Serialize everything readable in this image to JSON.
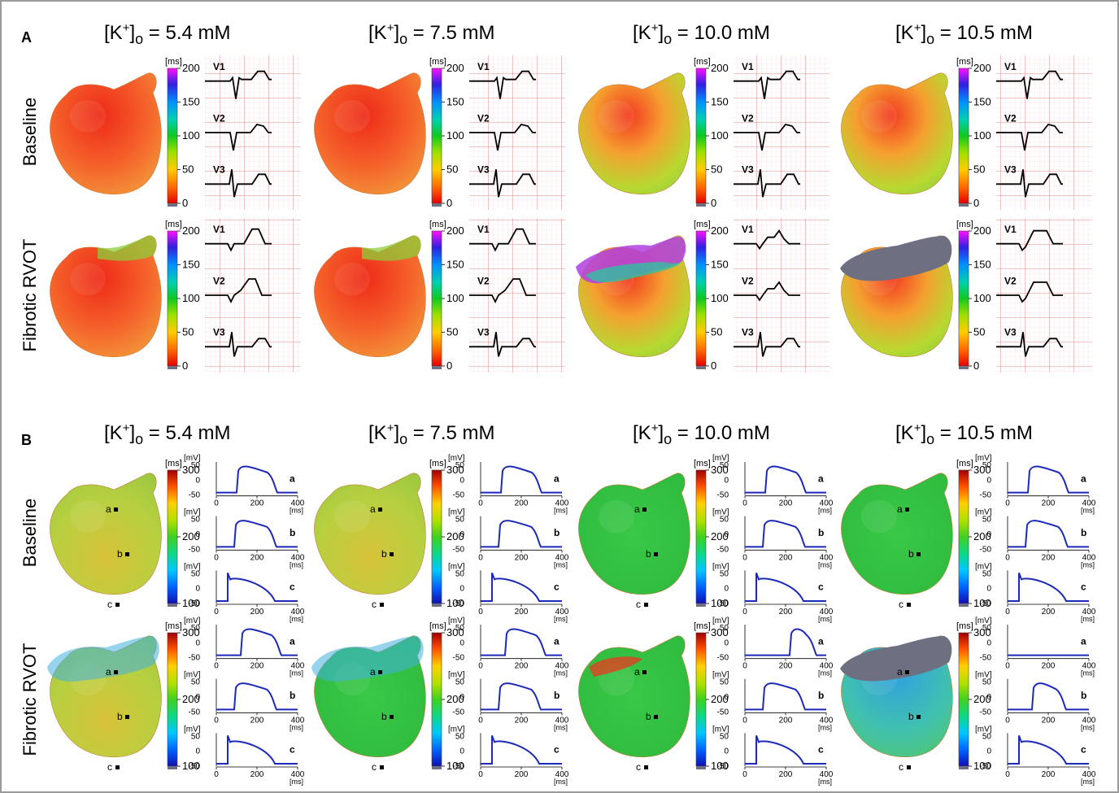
{
  "panels": {
    "A": {
      "letter": "A",
      "conditions": [
        "5.4 mM",
        "7.5 mM",
        "10.0 mM",
        "10.5 mM"
      ],
      "conc_values_mM": [
        5.4,
        7.5,
        10.0,
        10.5
      ],
      "rows": [
        "Baseline",
        "Fibrotic RVOT"
      ],
      "colorbar": {
        "unit": "[ms]",
        "ticks": [
          "0",
          "50",
          "100",
          "150",
          "200"
        ]
      },
      "ecg_leads": [
        "V1",
        "V2",
        "V3"
      ]
    },
    "B": {
      "letter": "B",
      "conditions": [
        "5.4 mM",
        "7.5 mM",
        "10.0 mM",
        "10.5 mM"
      ],
      "rows": [
        "Baseline",
        "Fibrotic RVOT"
      ],
      "colorbar": {
        "unit": "[ms]",
        "ticks": [
          "100",
          "200",
          "300"
        ]
      },
      "ap": {
        "y_unit": "[mV]",
        "y_ticks": [
          "50",
          "0",
          "-50"
        ],
        "x_ticks": [
          "0",
          "200",
          "400"
        ],
        "x_unit": "[ms]",
        "traces": [
          "a",
          "b",
          "c"
        ]
      },
      "site_labels": [
        "a",
        "b",
        "c"
      ]
    }
  },
  "condition_label": "[K+]o =",
  "colors": {
    "ecg_line": "#000000",
    "ecg_grid": "#e89090",
    "ap_line": "#1b2ab8",
    "axis": "#000000",
    "fibrosis_block": "#6e6f80"
  }
}
